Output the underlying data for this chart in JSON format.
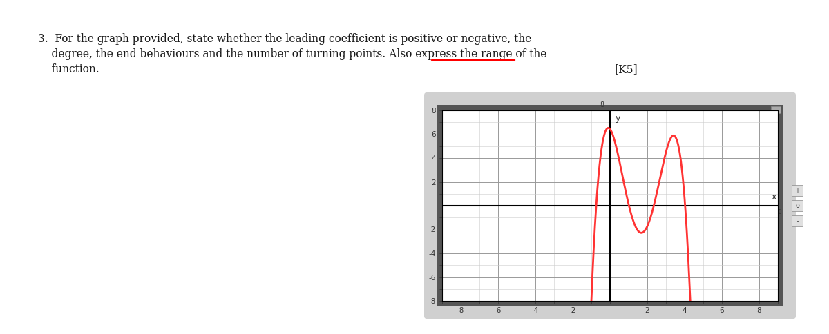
{
  "text_lines": [
    "3.  For the graph provided, state whether the leading coefficient is positive or negative, the",
    "    degree, the end behaviours and the number of turning points. Also express the range of the",
    "    function."
  ],
  "k5_label": "[K5]",
  "underline_word": "range of the",
  "graph_xlim": [
    -9,
    9
  ],
  "graph_ylim": [
    -8,
    8
  ],
  "graph_xticks": [
    -8,
    -6,
    -4,
    -2,
    2,
    4,
    6,
    8
  ],
  "graph_yticks": [
    -8,
    -6,
    -4,
    -2,
    2,
    4,
    6,
    8
  ],
  "curve_color": "#ff3333",
  "curve_linewidth": 2.0,
  "grid_bg": "#ffffff",
  "outer_panel_color": "#c0c0c0",
  "inner_border_color": "#555555",
  "text_color": "#1a1a1a",
  "fig_bg": "#ffffff",
  "axis_label_color": "#333333",
  "tick_label_color": "#333333",
  "grid_major_color": "#999999",
  "grid_minor_color": "#cccccc",
  "axis_line_color": "#000000"
}
